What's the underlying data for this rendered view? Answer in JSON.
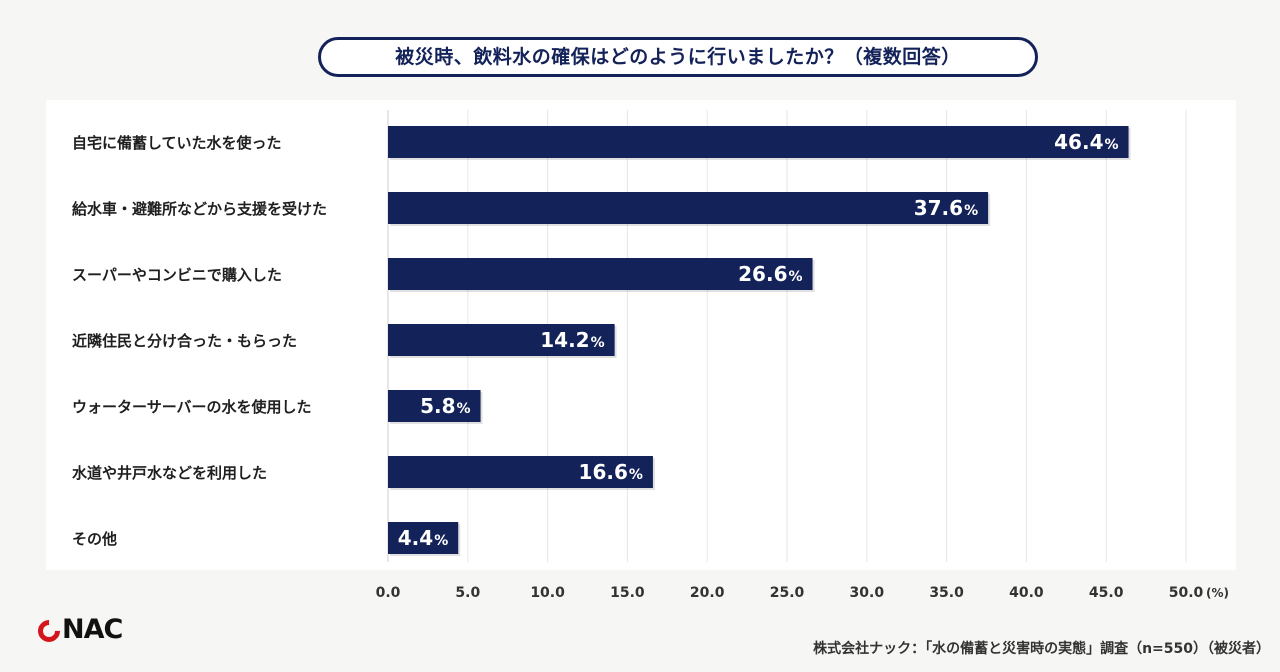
{
  "title": "被災時、飲料水の確保はどのように行いましたか？（複数回答）",
  "chart_data": {
    "type": "bar",
    "orientation": "horizontal",
    "title": "被災時、飲料水の確保はどのように行いましたか？（複数回答）",
    "categories": [
      "自宅に備蓄していた水を使った",
      "給水車・避難所などから支援を受けた",
      "スーパーやコンビニで購入した",
      "近隣住民と分け合った・もらった",
      "ウォーターサーバーの水を使用した",
      "水道や井戸水などを利用した",
      "その他"
    ],
    "values": [
      46.4,
      37.6,
      26.6,
      14.2,
      5.8,
      16.6,
      4.4
    ],
    "value_labels": [
      "46.4",
      "37.6",
      "26.6",
      "14.2",
      "5.8",
      "16.6",
      "4.4"
    ],
    "value_suffix": "%",
    "xlim": [
      0,
      50
    ],
    "xticks": [
      "0.0",
      "5.0",
      "10.0",
      "15.0",
      "20.0",
      "25.0",
      "30.0",
      "35.0",
      "40.0",
      "45.0",
      "50.0"
    ],
    "xunit": "(%)",
    "grid": true,
    "bar_color": "#132258"
  },
  "logo": {
    "text": "NAC"
  },
  "source": "株式会社ナック：「水の備蓄と災害時の実態」調査（n=550）（被災者）"
}
